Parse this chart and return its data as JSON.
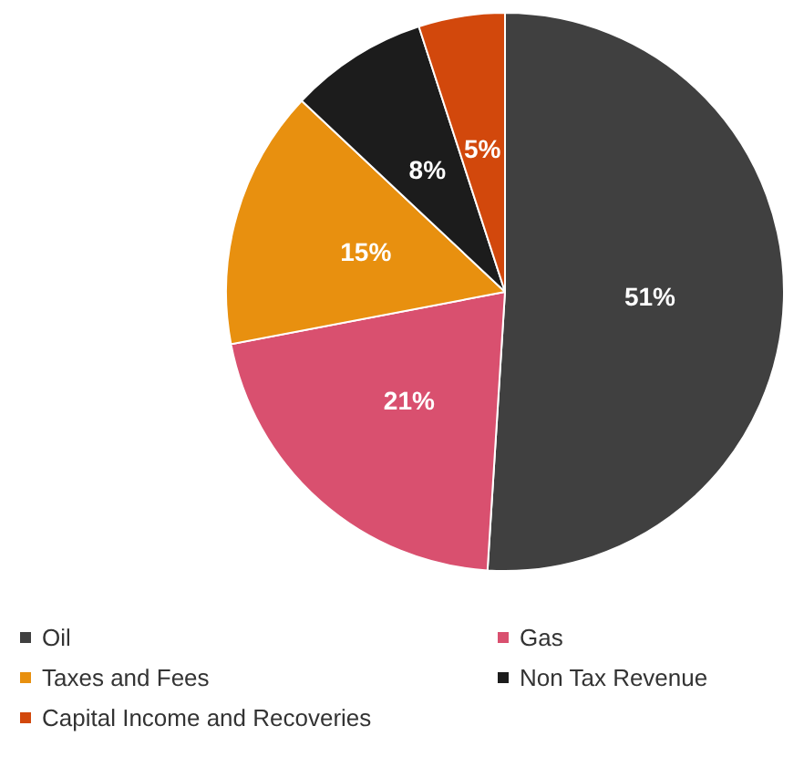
{
  "chart_data": {
    "type": "pie",
    "categories": [
      "Oil",
      "Gas",
      "Taxes and Fees",
      "Non Tax Revenue",
      "Capital Income and Recoveries"
    ],
    "values": [
      51,
      21,
      15,
      8,
      5
    ],
    "colors": [
      "#404040",
      "#d9506f",
      "#e8900f",
      "#1c1c1c",
      "#d2480c"
    ],
    "value_labels": [
      "51%",
      "21%",
      "15%",
      "8%",
      "5%"
    ],
    "legend": "bottom"
  }
}
